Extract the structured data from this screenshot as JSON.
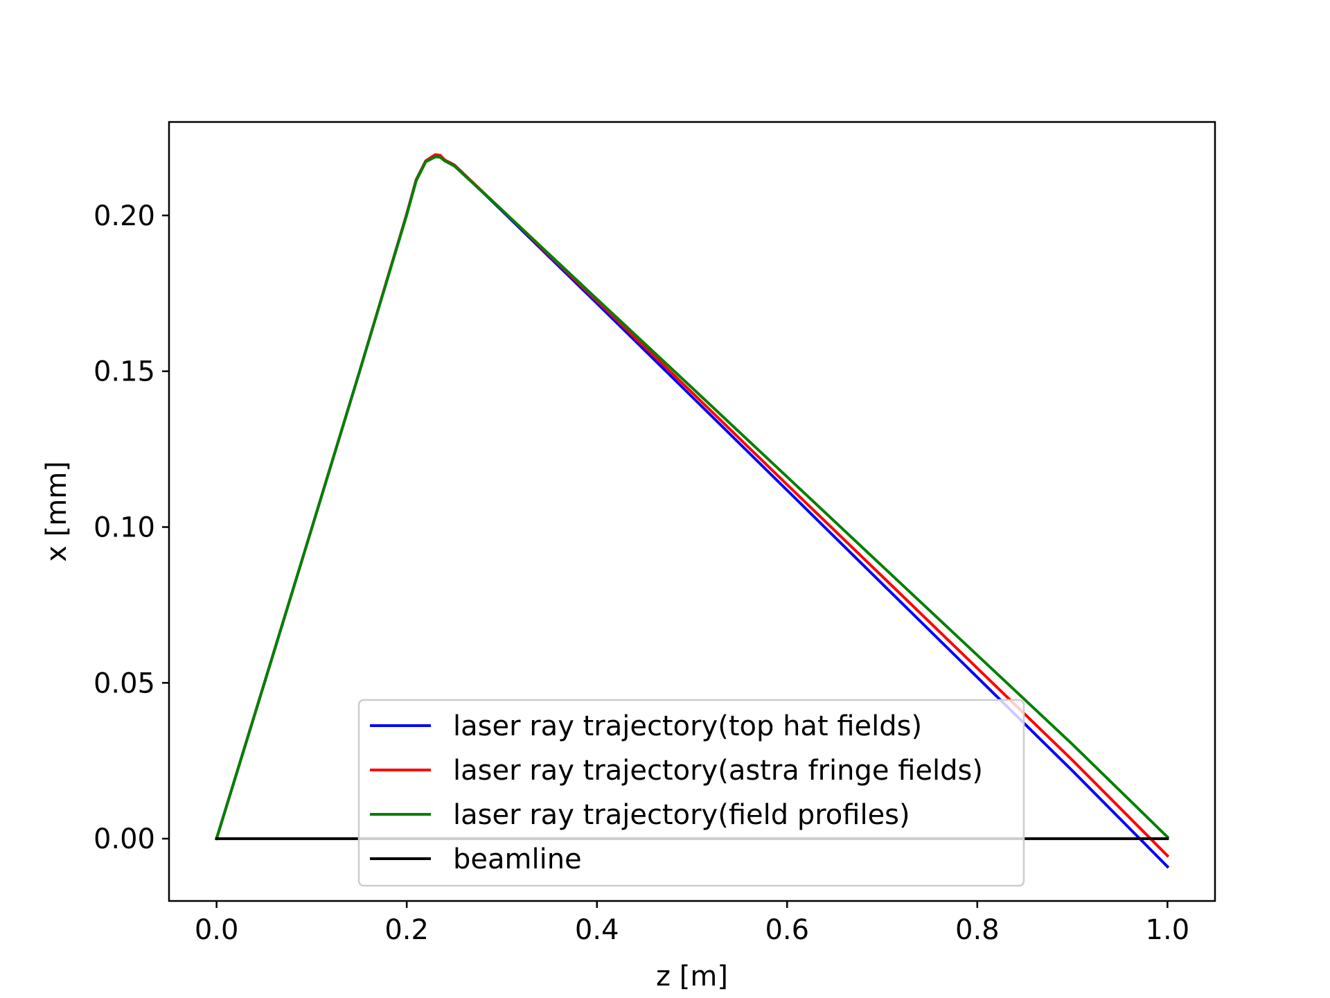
{
  "chart_data": {
    "type": "line",
    "title": "",
    "xlabel": "z [m]",
    "ylabel": "x [mm]",
    "xlim": [
      -0.05,
      1.05
    ],
    "ylim": [
      -0.02,
      0.23
    ],
    "xticks": [
      0.0,
      0.2,
      0.4,
      0.6,
      0.8,
      1.0
    ],
    "xtick_labels": [
      "0.0",
      "0.2",
      "0.4",
      "0.6",
      "0.8",
      "1.0"
    ],
    "yticks": [
      0.0,
      0.05,
      0.1,
      0.15,
      0.2
    ],
    "ytick_labels": [
      "0.00",
      "0.05",
      "0.10",
      "0.15",
      "0.20"
    ],
    "grid": false,
    "legend_position": "lower-center",
    "series": [
      {
        "name": "laser ray trajectory(top hat fields)",
        "color": "#0000ff",
        "x": [
          0.0,
          0.05,
          0.1,
          0.15,
          0.2,
          0.21,
          0.22,
          0.23,
          0.235,
          0.24,
          0.25,
          0.3,
          0.4,
          0.5,
          0.6,
          0.7,
          0.8,
          0.9,
          1.0
        ],
        "y": [
          0.0,
          0.0497,
          0.0995,
          0.1495,
          0.2005,
          0.2115,
          0.2175,
          0.2195,
          0.2193,
          0.2178,
          0.2162,
          0.2015,
          0.1718,
          0.1418,
          0.1118,
          0.0818,
          0.0518,
          0.0218,
          -0.009
        ]
      },
      {
        "name": "laser ray trajectory(astra fringe fields)",
        "color": "#ff0000",
        "x": [
          0.0,
          0.05,
          0.1,
          0.15,
          0.2,
          0.21,
          0.22,
          0.23,
          0.235,
          0.24,
          0.25,
          0.3,
          0.4,
          0.5,
          0.6,
          0.7,
          0.8,
          0.9,
          1.0
        ],
        "y": [
          0.0,
          0.0497,
          0.0995,
          0.1495,
          0.2005,
          0.2115,
          0.2175,
          0.2195,
          0.2193,
          0.2178,
          0.2162,
          0.2018,
          0.1726,
          0.1432,
          0.1136,
          0.0842,
          0.0547,
          0.0252,
          -0.0055
        ]
      },
      {
        "name": "laser ray trajectory(field profiles)",
        "color": "#008000",
        "x": [
          0.0,
          0.05,
          0.1,
          0.15,
          0.2,
          0.21,
          0.22,
          0.23,
          0.235,
          0.24,
          0.25,
          0.3,
          0.4,
          0.5,
          0.6,
          0.7,
          0.8,
          0.9,
          1.0
        ],
        "y": [
          0.0,
          0.0497,
          0.0995,
          0.1495,
          0.2002,
          0.2112,
          0.2172,
          0.2188,
          0.2187,
          0.2175,
          0.2159,
          0.2018,
          0.1732,
          0.1447,
          0.1161,
          0.0875,
          0.0589,
          0.0303,
          0.0005
        ]
      },
      {
        "name": "beamline",
        "color": "#000000",
        "x": [
          0.0,
          1.0
        ],
        "y": [
          0.0,
          0.0
        ]
      }
    ]
  }
}
